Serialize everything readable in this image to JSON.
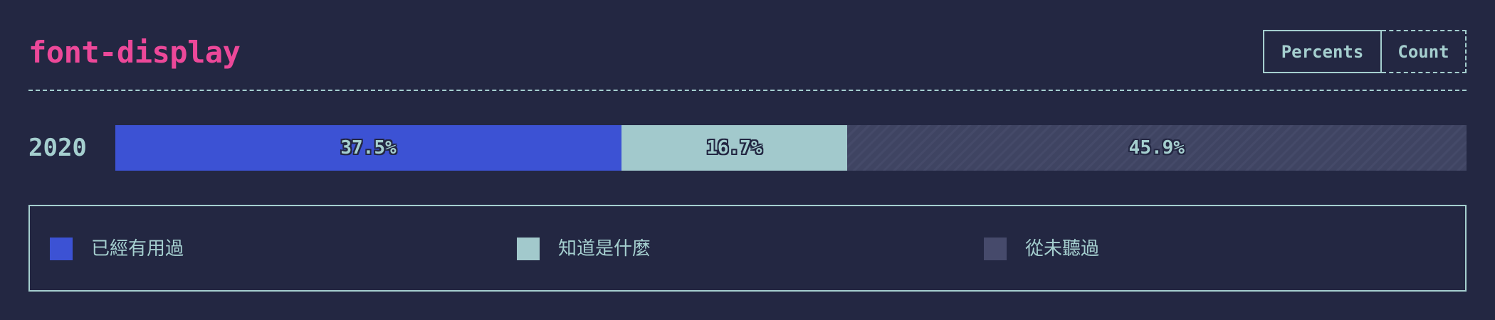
{
  "header": {
    "title": "font-display"
  },
  "toggle": {
    "percents_label": "Percents",
    "count_label": "Count",
    "active": "percents"
  },
  "colors": {
    "background": "#232742",
    "title": "#ec4899",
    "text": "#a5cfcf",
    "used": "#3c52d4",
    "heard": "#a2c9cc",
    "never": "#3f4462"
  },
  "chart_data": {
    "type": "bar",
    "orientation": "horizontal",
    "stacked": true,
    "title": "font-display",
    "categories": [
      "2020"
    ],
    "series": [
      {
        "name": "已經有用過",
        "values": [
          37.5
        ],
        "label": "37.5%",
        "color": "#3c52d4",
        "pattern": "solid"
      },
      {
        "name": "知道是什麼",
        "values": [
          16.7
        ],
        "label": "16.7%",
        "color": "#a2c9cc",
        "pattern": "solid"
      },
      {
        "name": "從未聽過",
        "values": [
          45.9
        ],
        "label": "45.9%",
        "color": "#3f4462",
        "pattern": "diagonal-stripes"
      }
    ],
    "units": "percent",
    "legend_position": "bottom"
  }
}
